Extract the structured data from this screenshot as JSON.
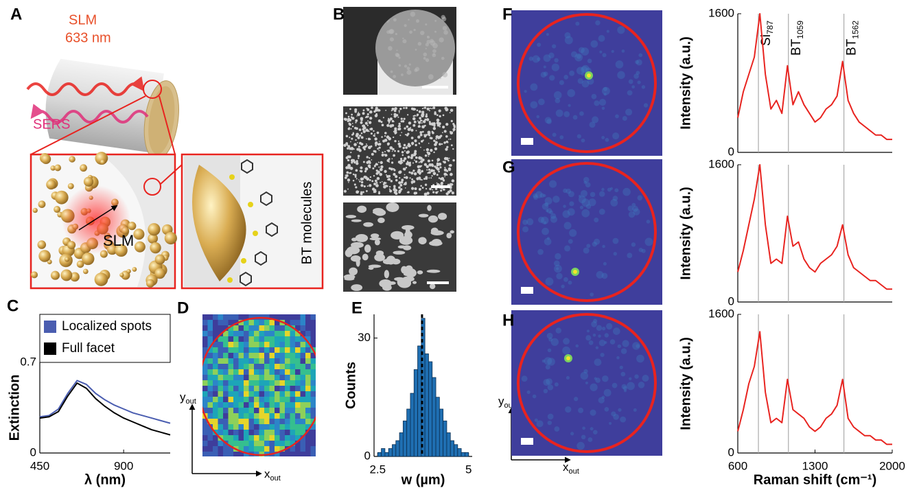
{
  "panels": {
    "A": "A",
    "B": "B",
    "C": "C",
    "D": "D",
    "E": "E",
    "F": "F",
    "G": "G",
    "H": "H"
  },
  "illustration": {
    "laser": "SLM",
    "wavelength": "633 nm",
    "signal": "SERS",
    "inset_label": "SLM",
    "molecules": "BT molecules"
  },
  "map_axes": {
    "x": "x",
    "y": "y",
    "sub": "out"
  },
  "chart_data": [
    {
      "type": "line",
      "y_label": "Extinction",
      "x_label": "λ (nm)",
      "x": [
        450,
        500,
        550,
        600,
        650,
        700,
        750,
        800,
        850,
        900,
        950,
        1000,
        1050,
        1100,
        1150
      ],
      "series": [
        {
          "name": "Localized spots",
          "color": "#4a5db0",
          "values": [
            0.28,
            0.29,
            0.34,
            0.46,
            0.56,
            0.53,
            0.46,
            0.41,
            0.37,
            0.34,
            0.31,
            0.29,
            0.27,
            0.25,
            0.23
          ]
        },
        {
          "name": "Full facet",
          "color": "#000000",
          "values": [
            0.27,
            0.28,
            0.32,
            0.44,
            0.54,
            0.5,
            0.42,
            0.36,
            0.31,
            0.27,
            0.24,
            0.21,
            0.18,
            0.16,
            0.14
          ]
        }
      ],
      "xlim": [
        450,
        1150
      ],
      "ylim": [
        0,
        0.7
      ],
      "xticks": [
        450,
        900
      ],
      "yticks": [
        0,
        0.7
      ],
      "legend": "top"
    },
    {
      "type": "histogram",
      "y_label": "Counts",
      "x_label": "w (µm)",
      "bins": [
        2.5,
        2.6,
        2.7,
        2.8,
        2.9,
        3.0,
        3.1,
        3.2,
        3.3,
        3.4,
        3.5,
        3.6,
        3.7,
        3.8,
        3.9,
        4.0,
        4.1,
        4.2,
        4.3,
        4.4,
        4.5,
        4.6,
        4.7,
        4.8,
        4.9,
        5.0
      ],
      "values": [
        1,
        2,
        1,
        2,
        3,
        4,
        6,
        9,
        12,
        16,
        22,
        28,
        35,
        26,
        24,
        20,
        15,
        12,
        9,
        6,
        4,
        3,
        2,
        1,
        1
      ],
      "color": "#1f6fb2",
      "vline": 3.72,
      "xlim": [
        2.4,
        5.1
      ],
      "ylim": [
        0,
        36
      ],
      "xticks": [
        2.5,
        5
      ],
      "yticks": [
        0,
        30
      ]
    },
    {
      "type": "line",
      "y_label": "Intensity (a.u.)",
      "x": [
        600,
        650,
        700,
        750,
        800,
        850,
        900,
        950,
        1000,
        1050,
        1100,
        1150,
        1200,
        1250,
        1300,
        1350,
        1400,
        1450,
        1500,
        1550,
        1600,
        1650,
        1700,
        1750,
        1800,
        1850,
        1900,
        1950,
        2000
      ],
      "series": [
        {
          "color": "#e8231f",
          "values": [
            400,
            700,
            900,
            1100,
            1600,
            900,
            500,
            600,
            450,
            1000,
            550,
            700,
            550,
            450,
            350,
            400,
            500,
            550,
            650,
            1050,
            600,
            450,
            350,
            300,
            250,
            200,
            200,
            150,
            150
          ]
        }
      ],
      "xlim": [
        600,
        2000
      ],
      "ylim": [
        0,
        1600
      ],
      "yticks": [
        0,
        1600
      ],
      "vlines": [
        787,
        1059,
        1562
      ],
      "annotations": [
        {
          "text": "Si",
          "sub": "787"
        },
        {
          "text": "BT",
          "sub": "1059"
        },
        {
          "text": "BT",
          "sub": "1562"
        }
      ]
    },
    {
      "type": "line",
      "y_label": "Intensity (a.u.)",
      "x": [
        600,
        650,
        700,
        750,
        800,
        850,
        900,
        950,
        1000,
        1050,
        1100,
        1150,
        1200,
        1250,
        1300,
        1350,
        1400,
        1450,
        1500,
        1550,
        1600,
        1650,
        1700,
        1750,
        1800,
        1850,
        1900,
        1950,
        2000
      ],
      "series": [
        {
          "color": "#e8231f",
          "values": [
            350,
            600,
            900,
            1200,
            1600,
            900,
            450,
            500,
            450,
            1000,
            650,
            700,
            500,
            400,
            350,
            450,
            500,
            550,
            650,
            900,
            550,
            400,
            350,
            300,
            250,
            250,
            200,
            150,
            150
          ]
        }
      ],
      "xlim": [
        600,
        2000
      ],
      "ylim": [
        0,
        1600
      ],
      "yticks": [
        0,
        1600
      ],
      "vlines": [
        787,
        1059,
        1562
      ]
    },
    {
      "type": "line",
      "y_label": "Intensity (a.u.)",
      "x_label": "Raman shift (cm⁻¹)",
      "x": [
        600,
        650,
        700,
        750,
        800,
        850,
        900,
        950,
        1000,
        1050,
        1100,
        1150,
        1200,
        1250,
        1300,
        1350,
        1400,
        1450,
        1500,
        1550,
        1600,
        1650,
        1700,
        1750,
        1800,
        1850,
        1900,
        1950,
        2000
      ],
      "series": [
        {
          "color": "#e8231f",
          "values": [
            250,
            500,
            800,
            1000,
            1400,
            700,
            350,
            400,
            350,
            850,
            500,
            450,
            400,
            300,
            250,
            300,
            400,
            450,
            550,
            850,
            400,
            300,
            250,
            200,
            200,
            150,
            150,
            100,
            100
          ]
        }
      ],
      "xlim": [
        600,
        2000
      ],
      "ylim": [
        0,
        1600
      ],
      "xticks": [
        600,
        1300,
        2000
      ],
      "yticks": [
        0,
        1600
      ],
      "vlines": [
        787,
        1059,
        1562
      ]
    }
  ]
}
